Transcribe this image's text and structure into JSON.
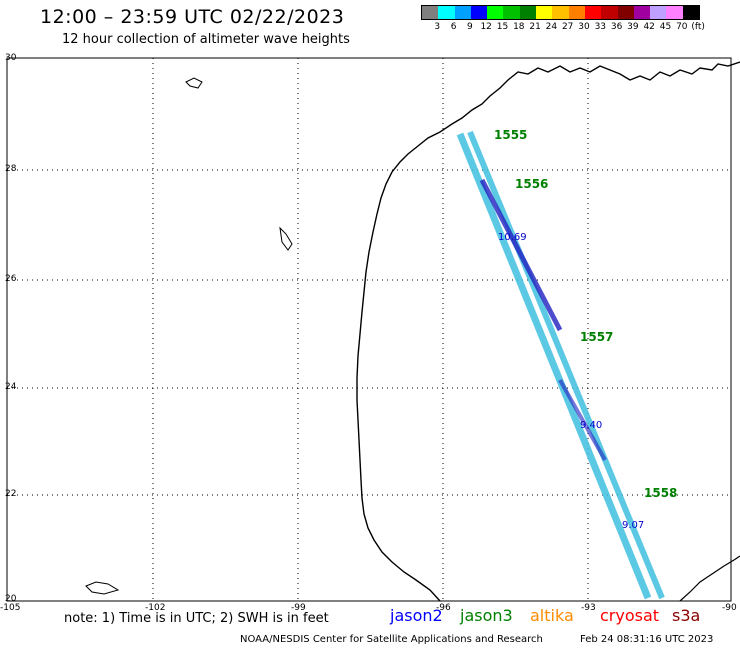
{
  "header": {
    "title": "12:00 – 23:59 UTC 02/22/2023",
    "subtitle": "12 hour collection of altimeter wave heights"
  },
  "legend": {
    "labels": [
      "3",
      "6",
      "9",
      "12",
      "15",
      "18",
      "21",
      "24",
      "27",
      "30",
      "33",
      "36",
      "39",
      "42",
      "45",
      "70",
      "(ft)"
    ],
    "colors": [
      "#7f7f7f",
      "#00ffff",
      "#00a0ff",
      "#0000ff",
      "#00ff00",
      "#00c000",
      "#008000",
      "#ffff00",
      "#ffc000",
      "#ff8000",
      "#ff0000",
      "#c00000",
      "#800000",
      "#a000a0",
      "#c0a0ff",
      "#ff80ff",
      "#000000"
    ]
  },
  "axes": {
    "lat_labels": [
      "30",
      "28",
      "26",
      "24",
      "22",
      "20"
    ],
    "lon_labels": [
      "-105",
      "-102",
      "-99",
      "-96",
      "-93",
      "-90"
    ]
  },
  "track_labels": [
    {
      "text": "1555",
      "color": "#008000"
    },
    {
      "text": "1556",
      "color": "#008000"
    },
    {
      "text": "1557",
      "color": "#008000"
    },
    {
      "text": "1558",
      "color": "#008000"
    },
    {
      "text": "10.69",
      "color": "#0000cc"
    },
    {
      "text": "9.40",
      "color": "#0000cc"
    },
    {
      "text": "9.07",
      "color": "#0000cc"
    }
  ],
  "footer": {
    "note": "note: 1) Time is in UTC; 2) SWH is in feet",
    "satellites": [
      {
        "name": "jason2",
        "color": "#0000ff"
      },
      {
        "name": "jason3",
        "color": "#008000"
      },
      {
        "name": "altika",
        "color": "#ff8c00"
      },
      {
        "name": "cryosat",
        "color": "#ff0000"
      },
      {
        "name": "s3a",
        "color": "#8b0000"
      }
    ],
    "credit": "NOAA/NESDIS Center for Satellite Applications and Research",
    "stamp": "Feb 24 08:31:16 UTC 2023"
  }
}
